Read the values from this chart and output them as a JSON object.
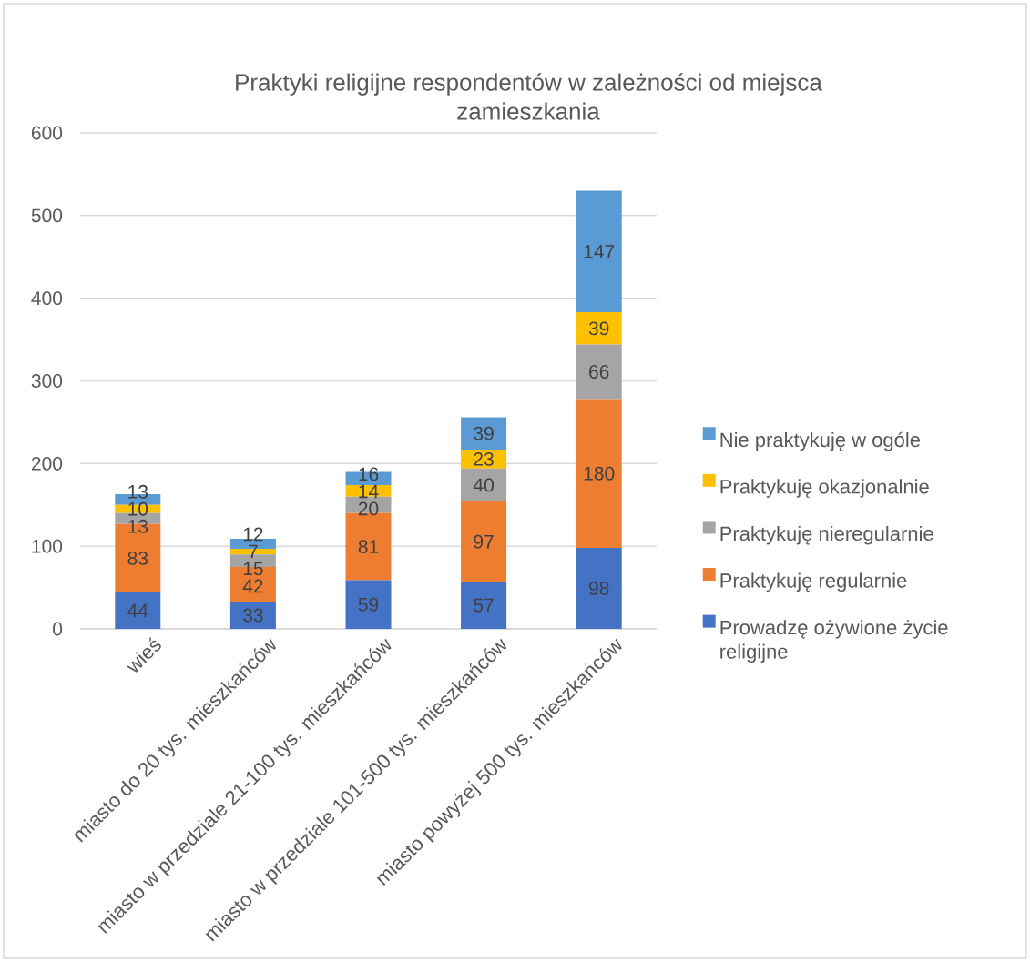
{
  "chart_data": {
    "type": "bar",
    "stacked": true,
    "title": "Praktyki religijne respondentów w zależności od miejsca zamieszkania",
    "categories": [
      "wieś",
      "miasto do 20 tys. mieszkańców",
      "miasto w przedziale 21-100 tys. mieszkańców",
      "miasto w przedziale 101-500 tys. mieszkańców",
      "miasto powyżej 500 tys. mieszkańców"
    ],
    "series": [
      {
        "name": "Prowadzę ożywione życie religijne",
        "color": "#4472c4",
        "values": [
          44,
          33,
          59,
          57,
          98
        ]
      },
      {
        "name": "Praktykuję regularnie",
        "color": "#ed7d31",
        "values": [
          83,
          42,
          81,
          97,
          180
        ]
      },
      {
        "name": "Praktykuję nieregularnie",
        "color": "#a5a5a5",
        "values": [
          13,
          15,
          20,
          40,
          66
        ]
      },
      {
        "name": "Praktykuję okazjonalnie",
        "color": "#ffc000",
        "values": [
          10,
          7,
          14,
          23,
          39
        ]
      },
      {
        "name": "Nie praktykuję w ogóle",
        "color": "#5b9bd5",
        "values": [
          13,
          12,
          16,
          39,
          147
        ]
      }
    ],
    "ylim": [
      0,
      600
    ],
    "yticks": [
      0,
      100,
      200,
      300,
      400,
      500,
      600
    ],
    "grid": "y",
    "legend": "right",
    "data_labels": true
  }
}
